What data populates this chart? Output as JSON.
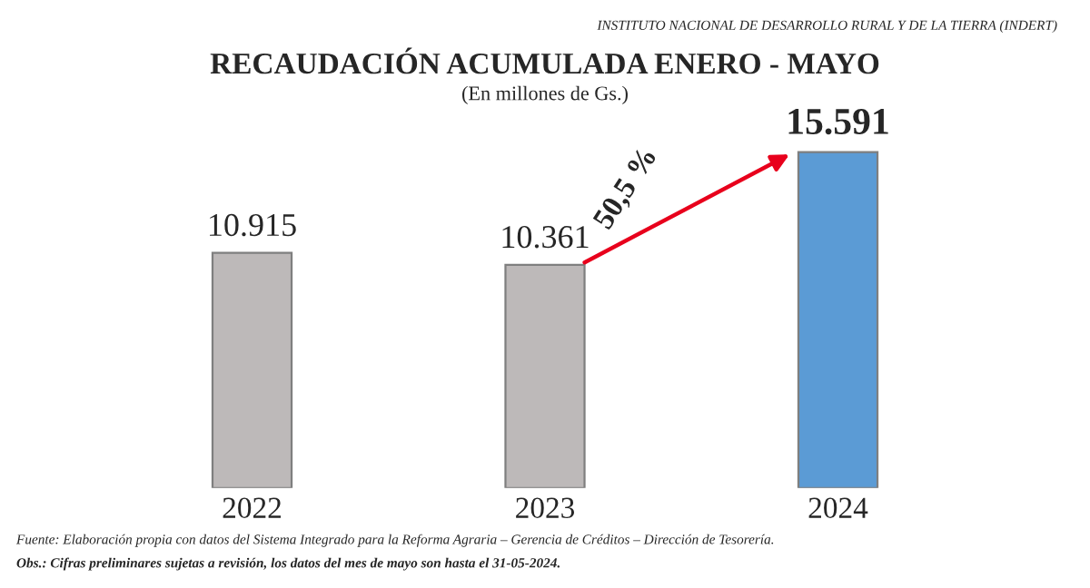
{
  "chart_data": {
    "type": "bar",
    "title": "RECAUDACIÓN ACUMULADA ENERO - MAYO",
    "subtitle": "(En millones de Gs.)",
    "categories": [
      "2022",
      "2023",
      "2024"
    ],
    "values": [
      10915,
      10361,
      15591
    ],
    "value_labels": [
      "10.915",
      "10.361",
      "15.591"
    ],
    "colors": [
      "#bdb9b9",
      "#bdb9b9",
      "#5b9bd5"
    ],
    "tick_labels": "x",
    "grid": false,
    "legend": false,
    "annotations": [
      "50,5 %",
      "INSTITUTO NACIONAL DE DESARROLLO RURAL Y DE LA TIERRA (INDERT)",
      "Fuente: Elaboración propia con datos del Sistema Integrado para la Reforma Agraria – Gerencia de Créditos – Dirección de Tesorería.",
      "Obs.: Cifras preliminares sujetas a revisión, los datos del mes de mayo son hasta el 31-05-2024."
    ]
  }
}
